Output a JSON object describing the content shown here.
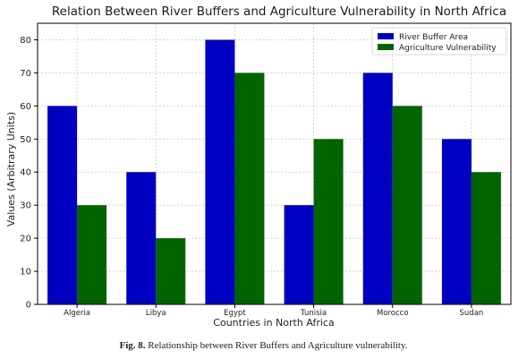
{
  "chart_data": {
    "type": "bar",
    "title": "Relation Between River Buffers and Agriculture Vulnerability in North Africa",
    "xlabel": "Countries in North Africa",
    "ylabel": "Values (Arbitrary Units)",
    "categories": [
      "Algeria",
      "Libya",
      "Egypt",
      "Tunisia",
      "Morocco",
      "Sudan"
    ],
    "series": [
      {
        "name": "River Buffer Area",
        "color": "#0000c0",
        "values": [
          60,
          40,
          80,
          30,
          70,
          50
        ]
      },
      {
        "name": "Agriculture Vulnerability",
        "color": "#006400",
        "values": [
          30,
          20,
          70,
          50,
          60,
          40
        ]
      }
    ],
    "ylim": [
      0,
      85
    ],
    "yticks": [
      0,
      10,
      20,
      30,
      40,
      50,
      60,
      70,
      80
    ],
    "grid": true,
    "legend": "top-right"
  },
  "caption": {
    "label": "Fig. 8.",
    "text": "Relationship between River Buffers and Agriculture vulnerability."
  }
}
